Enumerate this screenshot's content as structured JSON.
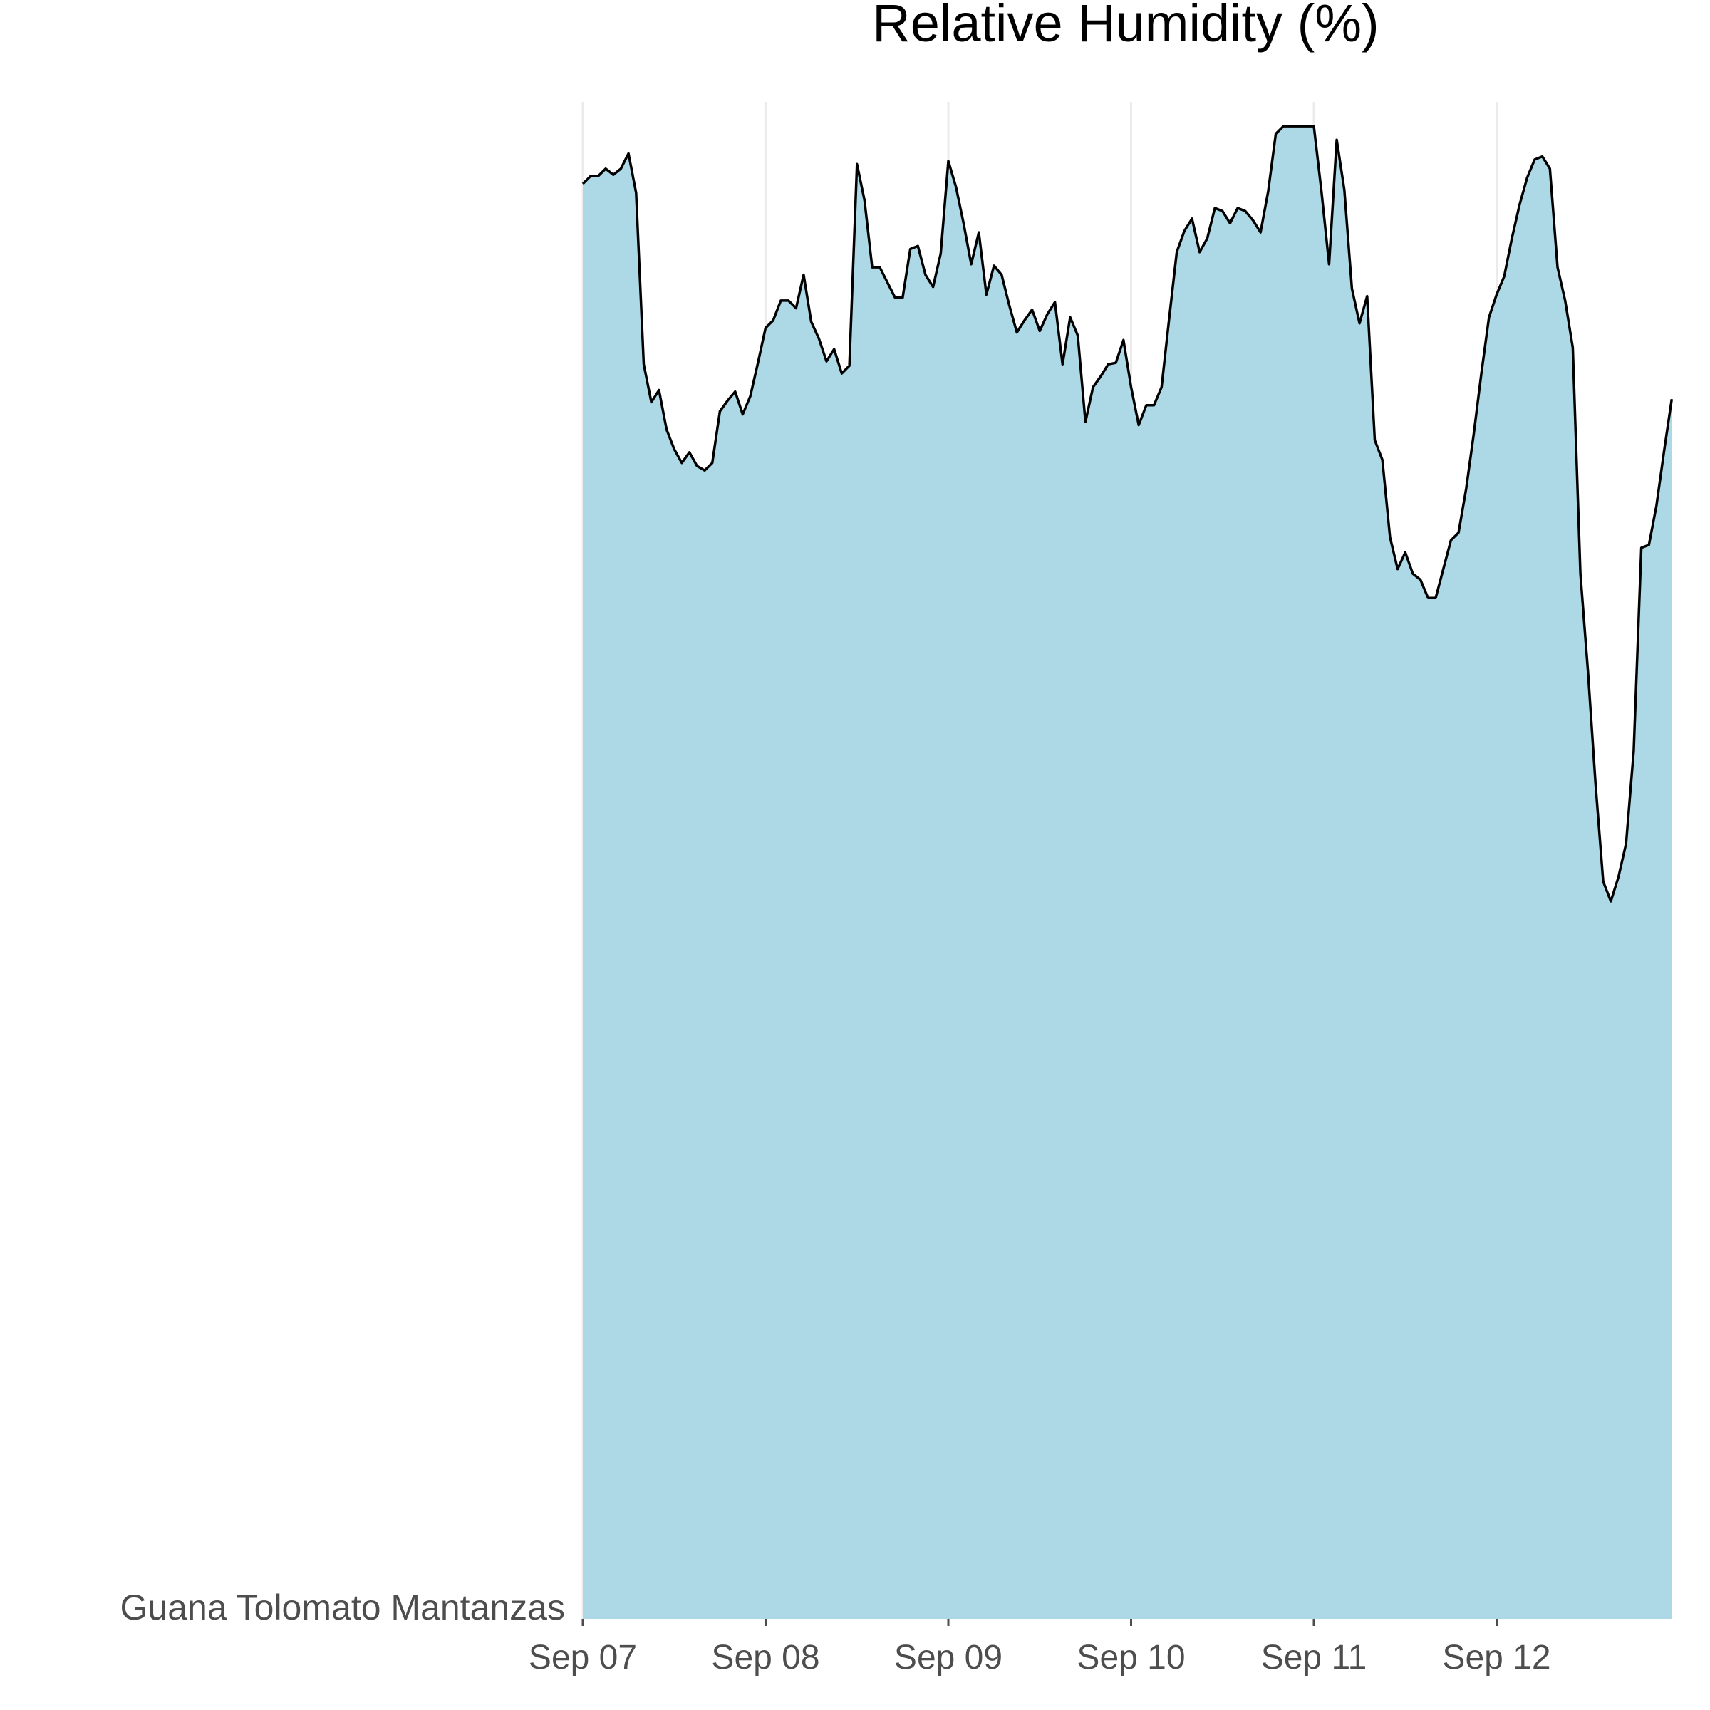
{
  "chart_data": {
    "type": "area",
    "title": "Relative Humidity (%)",
    "series_label": "Guana Tolomato Mantanzas",
    "x_unit": "time",
    "x_ticks": [
      "Sep 07",
      "Sep 08",
      "Sep 09",
      "Sep 10",
      "Sep 11",
      "Sep 12"
    ],
    "x_range": [
      "Sep 07 00:00",
      "Sep 12 23:00"
    ],
    "ylim": [
      0,
      100
    ],
    "grid": "vertical",
    "fill_color": "#add8e6",
    "line_color": "#000000",
    "interval_hours": 1,
    "values": [
      94.6,
      95.1,
      95.1,
      95.6,
      95.2,
      95.6,
      96.6,
      94.0,
      82.7,
      80.2,
      81.0,
      78.4,
      77.1,
      76.2,
      76.9,
      76.0,
      75.7,
      76.2,
      79.6,
      80.3,
      80.9,
      79.4,
      80.6,
      82.8,
      85.1,
      85.6,
      86.9,
      86.9,
      86.4,
      88.6,
      85.5,
      84.4,
      82.9,
      83.7,
      82.1,
      82.6,
      95.9,
      93.5,
      89.1,
      89.1,
      88.1,
      87.1,
      87.1,
      90.3,
      90.5,
      88.6,
      87.8,
      90.0,
      96.1,
      94.4,
      92.0,
      89.3,
      91.4,
      87.3,
      89.2,
      88.6,
      86.6,
      84.8,
      85.6,
      86.3,
      84.9,
      86.0,
      86.8,
      82.7,
      85.8,
      84.6,
      78.9,
      81.2,
      81.9,
      82.7,
      82.8,
      84.3,
      81.2,
      78.7,
      80.0,
      80.0,
      81.2,
      85.7,
      90.1,
      91.5,
      92.3,
      90.1,
      91.0,
      93.0,
      92.8,
      92.0,
      93.0,
      92.8,
      92.2,
      91.4,
      94.1,
      97.9,
      98.4,
      98.4,
      98.4,
      98.4,
      98.4,
      94.1,
      89.3,
      97.5,
      94.2,
      87.7,
      85.4,
      87.2,
      77.7,
      76.4,
      71.3,
      69.2,
      70.3,
      68.9,
      68.5,
      67.3,
      67.3,
      69.2,
      71.1,
      71.6,
      74.5,
      78.1,
      82.1,
      85.8,
      87.3,
      88.5,
      91.0,
      93.2,
      95.0,
      96.2,
      96.4,
      95.6,
      89.1,
      86.9,
      83.8,
      68.9,
      62.4,
      55.0,
      48.6,
      47.3,
      48.9,
      51.1,
      57.2,
      70.6,
      70.8,
      73.4,
      77.0,
      80.4
    ]
  }
}
